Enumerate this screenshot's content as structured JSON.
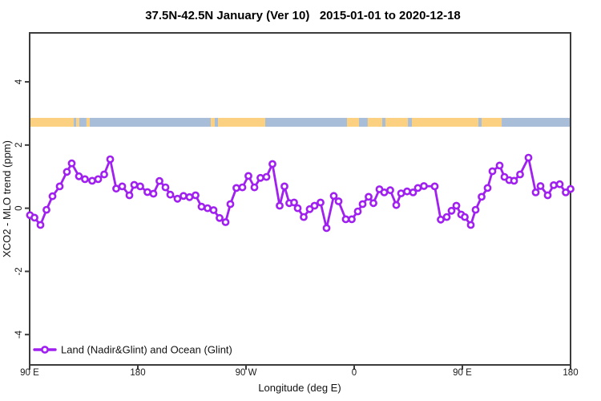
{
  "colors": {
    "series": "#A020F0",
    "land": "#FBD181",
    "ocean": "#A8BED8",
    "axis": "#3C3C3C",
    "text": "#000000"
  },
  "chart_data": {
    "type": "line",
    "title": "37.5N-42.5N January (Ver 10)   2015-01-01 to 2020-12-18",
    "xlabel": "Longitude (deg E)",
    "ylabel": "XCO2 - MLO trend (ppm)",
    "ylim": [
      -4.96,
      5.55
    ],
    "x_deg_range": [
      90,
      540
    ],
    "grid": false,
    "legend_position": "bottom-left-inside",
    "xticks": [
      {
        "deg": 90,
        "label": "90 E"
      },
      {
        "deg": 180,
        "label": "180"
      },
      {
        "deg": 270,
        "label": "90 W"
      },
      {
        "deg": 360,
        "label": "0"
      },
      {
        "deg": 450,
        "label": "90 E"
      },
      {
        "deg": 540,
        "label": "180"
      }
    ],
    "yticks": [
      {
        "v": 4,
        "label": "4"
      },
      {
        "v": 2,
        "label": "2"
      },
      {
        "v": 0,
        "label": "0"
      },
      {
        "v": -2,
        "label": "-2"
      },
      {
        "v": -4,
        "label": "-4"
      }
    ],
    "band": {
      "description": "land/ocean strip along longitude",
      "ppm_top": 2.86,
      "ppm_bottom": 2.58,
      "segments": [
        {
          "from_deg": 90,
          "to_deg": 126.7,
          "type": "land"
        },
        {
          "from_deg": 126.7,
          "to_deg": 128.7,
          "type": "ocean"
        },
        {
          "from_deg": 128.7,
          "to_deg": 131.3,
          "type": "land"
        },
        {
          "from_deg": 131.3,
          "to_deg": 137.3,
          "type": "ocean"
        },
        {
          "from_deg": 137.3,
          "to_deg": 140.0,
          "type": "land"
        },
        {
          "from_deg": 140.0,
          "to_deg": 240.7,
          "type": "ocean"
        },
        {
          "from_deg": 240.7,
          "to_deg": 244.0,
          "type": "land"
        },
        {
          "from_deg": 244.0,
          "to_deg": 246.7,
          "type": "ocean"
        },
        {
          "from_deg": 246.7,
          "to_deg": 286.0,
          "type": "land"
        },
        {
          "from_deg": 286.0,
          "to_deg": 354.0,
          "type": "ocean"
        },
        {
          "from_deg": 354.0,
          "to_deg": 364.0,
          "type": "land"
        },
        {
          "from_deg": 364.0,
          "to_deg": 371.3,
          "type": "ocean"
        },
        {
          "from_deg": 371.3,
          "to_deg": 383.3,
          "type": "land"
        },
        {
          "from_deg": 383.3,
          "to_deg": 386.0,
          "type": "ocean"
        },
        {
          "from_deg": 386.0,
          "to_deg": 404.7,
          "type": "land"
        },
        {
          "from_deg": 404.7,
          "to_deg": 408.0,
          "type": "ocean"
        },
        {
          "from_deg": 408.0,
          "to_deg": 463.3,
          "type": "land"
        },
        {
          "from_deg": 463.3,
          "to_deg": 466.0,
          "type": "ocean"
        },
        {
          "from_deg": 466.0,
          "to_deg": 482.7,
          "type": "land"
        },
        {
          "from_deg": 482.7,
          "to_deg": 540.0,
          "type": "ocean"
        }
      ]
    },
    "legend": [
      {
        "label": "Land (Nadir&Glint) and Ocean (Glint)",
        "color": "#A020F0",
        "marker": "open-circle"
      }
    ],
    "series": [
      {
        "name": "Land (Nadir&Glint) and Ocean (Glint)",
        "points": [
          [
            90.3,
            -0.22
          ],
          [
            94,
            -0.3
          ],
          [
            99,
            -0.53
          ],
          [
            104,
            -0.05
          ],
          [
            109,
            0.38
          ],
          [
            115,
            0.69
          ],
          [
            121,
            1.15
          ],
          [
            125,
            1.42
          ],
          [
            131,
            1.01
          ],
          [
            136,
            0.92
          ],
          [
            142,
            0.87
          ],
          [
            147,
            0.92
          ],
          [
            152,
            1.07
          ],
          [
            157,
            1.55
          ],
          [
            162,
            0.62
          ],
          [
            167,
            0.69
          ],
          [
            173,
            0.41
          ],
          [
            177,
            0.74
          ],
          [
            182,
            0.69
          ],
          [
            188,
            0.51
          ],
          [
            193,
            0.46
          ],
          [
            198,
            0.86
          ],
          [
            203,
            0.66
          ],
          [
            207,
            0.43
          ],
          [
            213,
            0.3
          ],
          [
            218,
            0.39
          ],
          [
            223,
            0.35
          ],
          [
            228,
            0.41
          ],
          [
            233,
            0.05
          ],
          [
            238,
            0.0
          ],
          [
            243,
            -0.06
          ],
          [
            248,
            -0.31
          ],
          [
            253,
            -0.44
          ],
          [
            257,
            0.13
          ],
          [
            262,
            0.64
          ],
          [
            267,
            0.66
          ],
          [
            272,
            1.02
          ],
          [
            277,
            0.66
          ],
          [
            282,
            0.96
          ],
          [
            287,
            0.99
          ],
          [
            292,
            1.4
          ],
          [
            298,
            0.08
          ],
          [
            302,
            0.69
          ],
          [
            306,
            0.16
          ],
          [
            310,
            0.18
          ],
          [
            313,
            0.0
          ],
          [
            318,
            -0.28
          ],
          [
            323,
            -0.03
          ],
          [
            327,
            0.08
          ],
          [
            332,
            0.18
          ],
          [
            337,
            -0.63
          ],
          [
            343,
            0.39
          ],
          [
            347,
            0.22
          ],
          [
            353,
            -0.35
          ],
          [
            358,
            -0.35
          ],
          [
            363,
            -0.1
          ],
          [
            367,
            0.13
          ],
          [
            372,
            0.36
          ],
          [
            376,
            0.16
          ],
          [
            381,
            0.6
          ],
          [
            385,
            0.5
          ],
          [
            390,
            0.57
          ],
          [
            395,
            0.1
          ],
          [
            399,
            0.47
          ],
          [
            404,
            0.53
          ],
          [
            409,
            0.5
          ],
          [
            413,
            0.64
          ],
          [
            418,
            0.7
          ],
          [
            427,
            0.69
          ],
          [
            432,
            -0.36
          ],
          [
            437,
            -0.28
          ],
          [
            441,
            -0.08
          ],
          [
            445,
            0.08
          ],
          [
            449,
            -0.2
          ],
          [
            452,
            -0.28
          ],
          [
            457,
            -0.53
          ],
          [
            461,
            -0.05
          ],
          [
            466,
            0.36
          ],
          [
            471,
            0.64
          ],
          [
            475,
            1.17
          ],
          [
            481,
            1.35
          ],
          [
            485,
            0.99
          ],
          [
            489,
            0.89
          ],
          [
            493,
            0.87
          ],
          [
            498,
            1.07
          ],
          [
            505,
            1.6
          ],
          [
            511,
            0.5
          ],
          [
            515,
            0.7
          ],
          [
            521,
            0.41
          ],
          [
            526,
            0.73
          ],
          [
            531,
            0.76
          ],
          [
            536,
            0.5
          ],
          [
            540,
            0.61
          ]
        ]
      }
    ]
  }
}
